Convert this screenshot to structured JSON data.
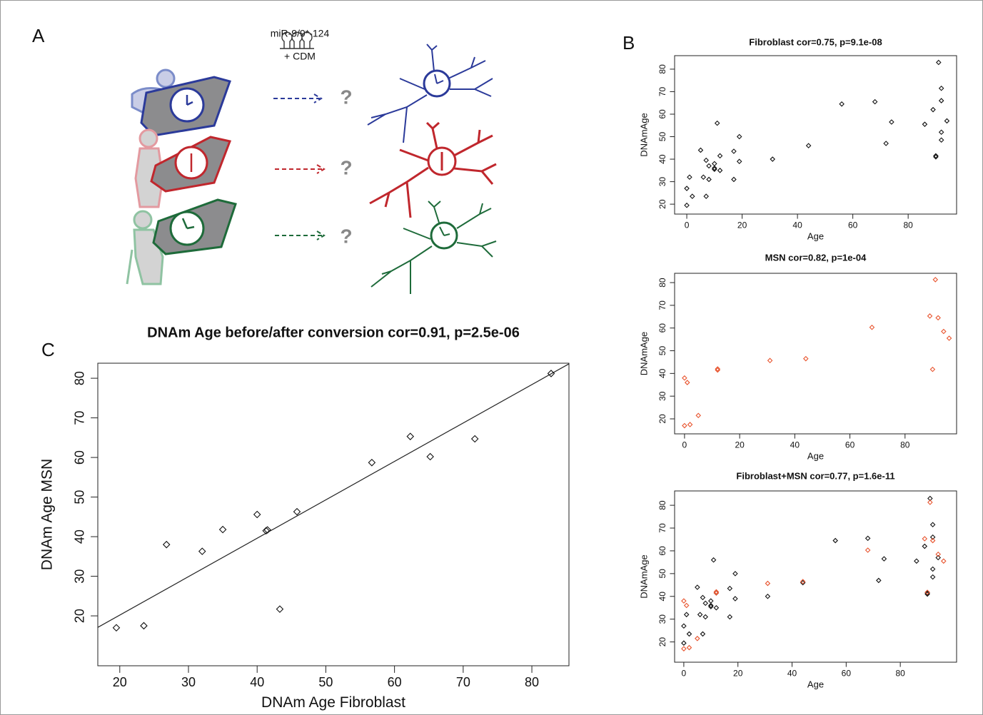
{
  "panel_labels": [
    "A",
    "B",
    "C"
  ],
  "diagram": {
    "treatment": "miR-9/9*-124",
    "medium": "+ CDM",
    "outcomes": [
      "?",
      "?",
      "?"
    ]
  },
  "chart_data": [
    {
      "type": "scatter",
      "title": "Fibroblast cor=0.75, p=9.1e-08",
      "x_label": "Age",
      "y_label": "DNAmAge",
      "xlim": [
        -4.4,
        97.5
      ],
      "ylim": [
        15.6,
        86
      ],
      "xticks": [
        0,
        20,
        40,
        60,
        80
      ],
      "yticks": [
        20,
        30,
        40,
        50,
        60,
        70,
        80
      ],
      "series": [
        {
          "color": "#111111",
          "x": [
            0,
            0,
            1,
            2,
            5,
            6,
            7,
            7,
            8,
            8,
            10,
            10,
            10,
            11,
            12,
            12,
            17,
            17,
            19,
            19,
            31,
            44,
            56,
            68,
            72,
            74,
            86,
            89,
            90,
            90,
            91,
            92,
            92,
            92,
            92,
            94
          ],
          "y": [
            19.5,
            27,
            32,
            23.5,
            44,
            32,
            23.5,
            39.5,
            31,
            37,
            38,
            36,
            35.5,
            56,
            41.5,
            35,
            43.5,
            31,
            50,
            39,
            40,
            46,
            64.5,
            65.5,
            47,
            56.5,
            55.5,
            62,
            41,
            41.5,
            83,
            71.5,
            66,
            52,
            48.5,
            57
          ]
        }
      ]
    },
    {
      "type": "scatter",
      "title": "MSN cor=0.82, p=1e-04",
      "x_label": "Age",
      "y_label": "DNAmAge",
      "xlim": [
        -3.6,
        98.7
      ],
      "ylim": [
        13.4,
        84.1
      ],
      "xticks": [
        0,
        20,
        40,
        60,
        80
      ],
      "yticks": [
        20,
        30,
        40,
        50,
        60,
        70,
        80
      ],
      "series": [
        {
          "color": "#e8542e",
          "x": [
            0,
            0,
            1,
            2,
            5,
            12,
            12,
            31,
            44,
            68,
            89,
            90,
            91,
            92,
            94,
            96
          ],
          "y": [
            17,
            38,
            36,
            17.5,
            21.5,
            42,
            41.5,
            45.7,
            46.5,
            60.3,
            65.3,
            41.8,
            81.3,
            64.5,
            58.5,
            55.5
          ]
        }
      ]
    },
    {
      "type": "scatter",
      "title": "Fibroblast+MSN cor=0.77, p=1.6e-11",
      "x_label": "Age",
      "y_label": "DNAmAge",
      "xlim": [
        -3.4,
        100.8
      ],
      "ylim": [
        11.1,
        86.3
      ],
      "xticks": [
        0,
        20,
        40,
        60,
        80
      ],
      "yticks": [
        20,
        30,
        40,
        50,
        60,
        70,
        80
      ],
      "series": [
        {
          "color": "#111111",
          "x": [
            0,
            0,
            1,
            2,
            5,
            6,
            7,
            7,
            8,
            8,
            10,
            10,
            10,
            11,
            12,
            12,
            17,
            17,
            19,
            19,
            31,
            44,
            56,
            68,
            72,
            74,
            86,
            89,
            90,
            90,
            91,
            92,
            92,
            92,
            92,
            94
          ],
          "y": [
            19.5,
            27,
            32,
            23.5,
            44,
            32,
            23.5,
            39.5,
            31,
            37,
            38,
            36,
            35.5,
            56,
            41.5,
            35,
            43.5,
            31,
            50,
            39,
            40,
            46,
            64.5,
            65.5,
            47,
            56.5,
            55.5,
            62,
            41,
            41.5,
            83,
            71.5,
            66,
            52,
            48.5,
            57
          ]
        },
        {
          "color": "#e8542e",
          "x": [
            0,
            0,
            1,
            2,
            5,
            12,
            12,
            31,
            44,
            68,
            89,
            90,
            91,
            92,
            94,
            96
          ],
          "y": [
            17,
            38,
            36,
            17.5,
            21.5,
            42,
            41.5,
            45.7,
            46.5,
            60.3,
            65.3,
            41.8,
            81.3,
            64.5,
            58.5,
            55.5
          ]
        }
      ]
    },
    {
      "type": "scatter",
      "title": "DNAm Age before/after conversion cor=0.91, p=2.5e-06",
      "x_label": "DNAm Age Fibroblast",
      "y_label": "DNAm Age MSN",
      "xlim": [
        16.8,
        85.4
      ],
      "ylim": [
        7.4,
        83.8
      ],
      "xticks": [
        20,
        30,
        40,
        50,
        60,
        70,
        80
      ],
      "yticks": [
        20,
        30,
        40,
        50,
        60,
        70,
        80
      ],
      "fit": {
        "slope": 0.97,
        "intercept": 0.8
      },
      "series": [
        {
          "color": "#111111",
          "x": [
            19.5,
            23.5,
            26.8,
            32,
            35,
            40,
            41.3,
            41.5,
            43.3,
            45.8,
            56.7,
            62.3,
            65.2,
            71.7,
            82.8
          ],
          "y": [
            17,
            17.5,
            38,
            36.3,
            41.8,
            45.6,
            41.5,
            41.7,
            21.7,
            46.3,
            58.7,
            65.3,
            60.2,
            64.7,
            81.2
          ]
        }
      ]
    }
  ]
}
